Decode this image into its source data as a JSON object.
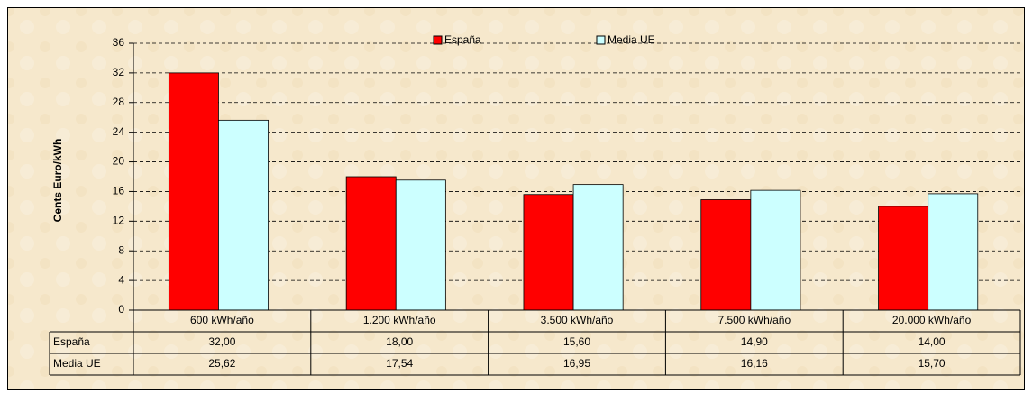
{
  "chart_data": {
    "type": "bar",
    "y_label": "Cents Euro/kWh",
    "categories": [
      "600 kWh/año",
      "1.200 kWh/año",
      "3.500 kWh/año",
      "7.500 kWh/año",
      "20.000 kWh/año"
    ],
    "series": [
      {
        "name": "España",
        "color": "#ff0000",
        "values": [
          32,
          18,
          15.6,
          14.9,
          14
        ],
        "value_labels": [
          "32,00",
          "18,00",
          "15,60",
          "14,90",
          "14,00"
        ]
      },
      {
        "name": "Media UE",
        "color": "#ccffff",
        "values": [
          25.62,
          17.54,
          16.95,
          16.16,
          15.7
        ],
        "value_labels": [
          "25,62",
          "17,54",
          "16,95",
          "16,16",
          "15,70"
        ]
      }
    ],
    "ylim": [
      0,
      36
    ],
    "yticks": [
      0,
      4,
      8,
      12,
      16,
      20,
      24,
      28,
      32,
      36
    ],
    "grid": true,
    "legend": "top"
  }
}
